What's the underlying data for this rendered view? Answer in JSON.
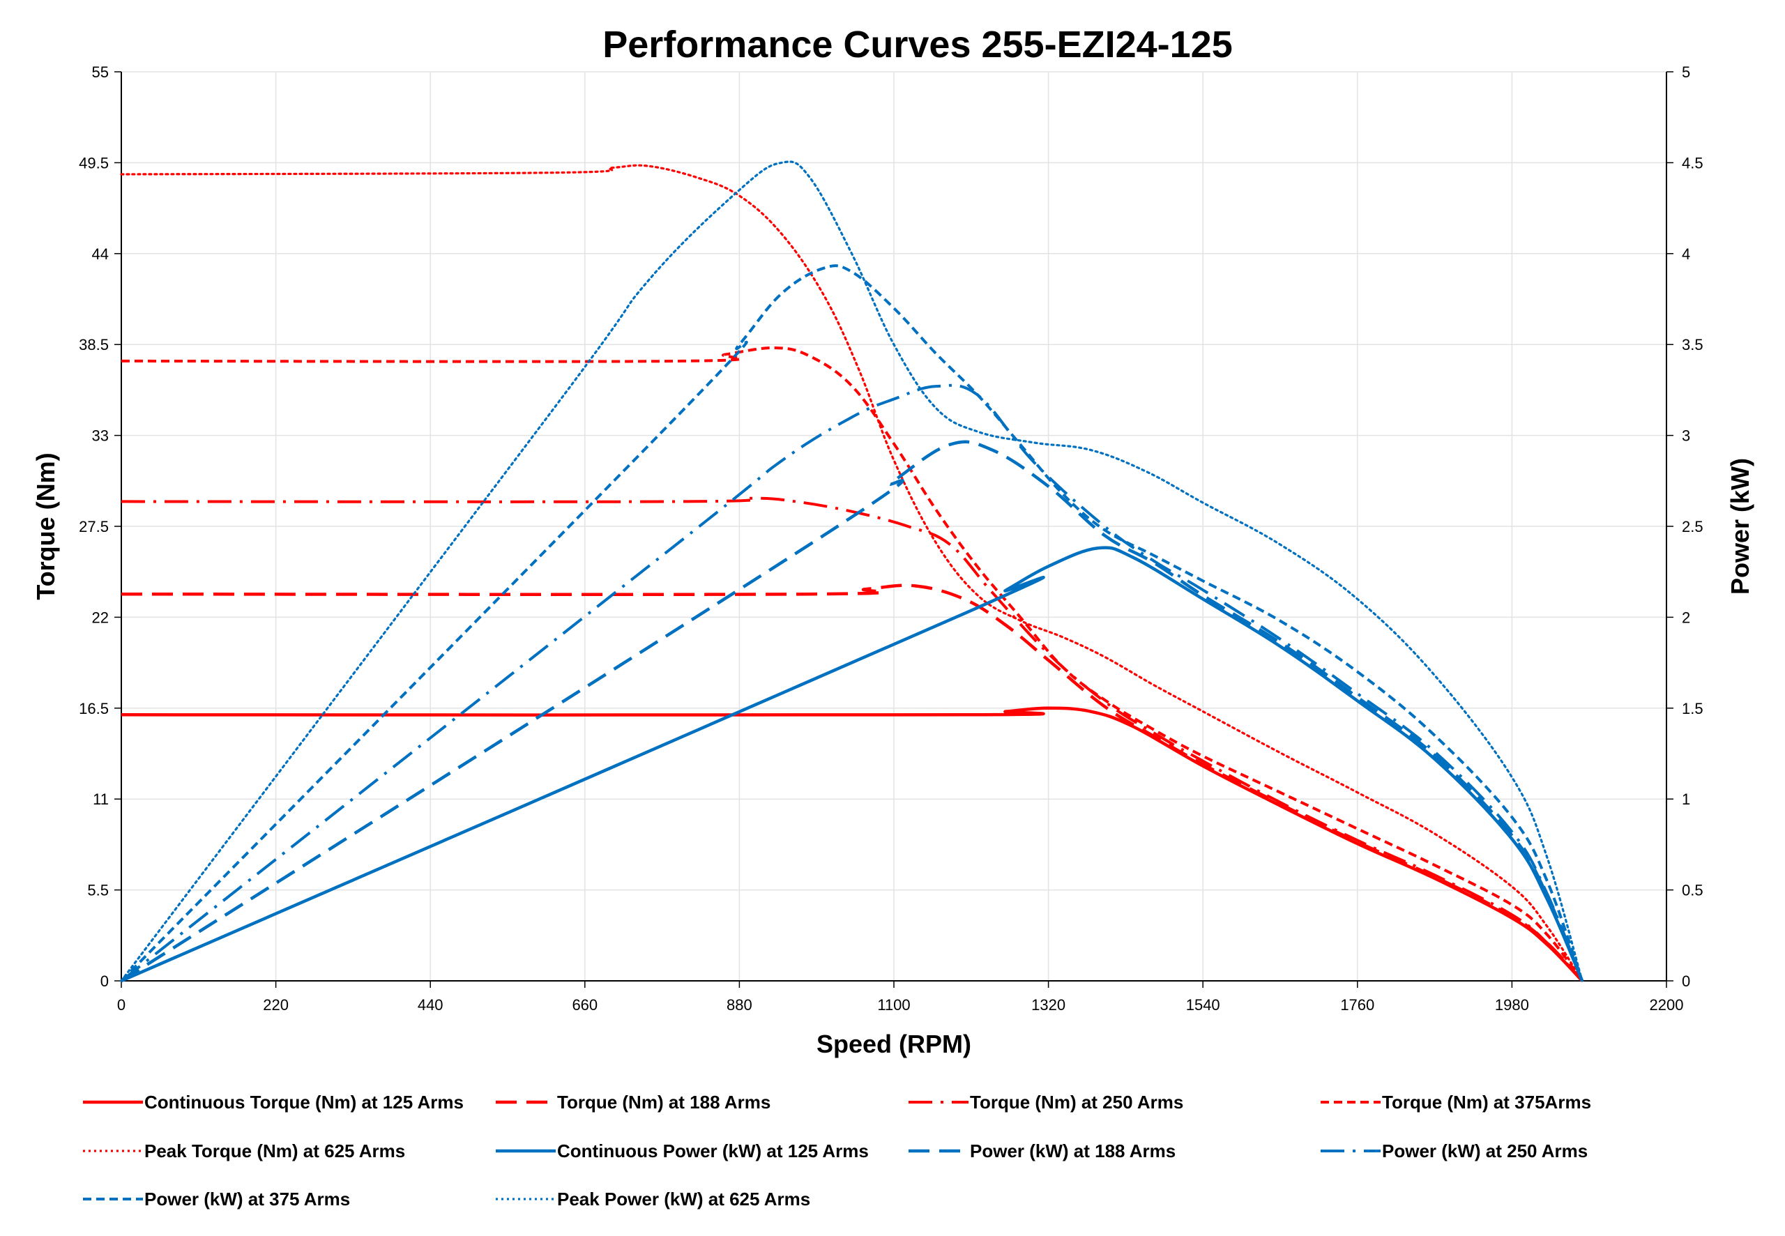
{
  "chart_data": {
    "type": "line",
    "title": "Performance Curves 255-EZI24-125",
    "xlabel": "Speed (RPM)",
    "ylabel": "Torque (Nm)",
    "y2label": "Power (kW)",
    "xlim": [
      0,
      2200
    ],
    "ylim": [
      0,
      55
    ],
    "y2lim": [
      0,
      5
    ],
    "xticks": [
      "0",
      "220",
      "440",
      "660",
      "880",
      "1100",
      "1320",
      "1540",
      "1760",
      "1980",
      "2200"
    ],
    "yticks": [
      "0",
      "5.5",
      "11",
      "16.5",
      "22",
      "27.5",
      "33",
      "38.5",
      "44",
      "49.5",
      "55"
    ],
    "y2ticks": [
      "0",
      "0.5",
      "1",
      "1.5",
      "2",
      "2.5",
      "3",
      "3.5",
      "4",
      "4.5",
      "5"
    ],
    "grid": true,
    "legend_position": "bottom",
    "colors": {
      "torque": "#ff0000",
      "power": "#0070c0"
    },
    "series": [
      {
        "name": "Continuous Torque (Nm) at 125 Arms",
        "axis": "left",
        "color": "#ff0000",
        "style": "solid",
        "points": [
          [
            0,
            16.1
          ],
          [
            1200,
            16.1
          ],
          [
            1260,
            16.3
          ],
          [
            1320,
            16.5
          ],
          [
            1380,
            16.3
          ],
          [
            1440,
            15.4
          ],
          [
            1540,
            13.0
          ],
          [
            1650,
            10.6
          ],
          [
            1760,
            8.3
          ],
          [
            1870,
            6.2
          ],
          [
            1980,
            3.8
          ],
          [
            2030,
            2.2
          ],
          [
            2080,
            0
          ]
        ]
      },
      {
        "name": "Torque (Nm) at 188 Arms",
        "axis": "left",
        "color": "#ff0000",
        "style": "long-dash",
        "points": [
          [
            0,
            23.4
          ],
          [
            980,
            23.4
          ],
          [
            1060,
            23.7
          ],
          [
            1130,
            23.9
          ],
          [
            1200,
            23.1
          ],
          [
            1260,
            21.5
          ],
          [
            1320,
            19.4
          ],
          [
            1400,
            16.6
          ],
          [
            1470,
            14.8
          ],
          [
            1540,
            13.1
          ],
          [
            1650,
            10.7
          ],
          [
            1760,
            8.4
          ],
          [
            1870,
            6.3
          ],
          [
            1980,
            3.9
          ],
          [
            2030,
            2.3
          ],
          [
            2080,
            0
          ]
        ]
      },
      {
        "name": "Torque (Nm) at 250 Arms",
        "axis": "left",
        "color": "#ff0000",
        "style": "dash-dot",
        "points": [
          [
            0,
            29.0
          ],
          [
            800,
            29.0
          ],
          [
            900,
            29.2
          ],
          [
            960,
            29.0
          ],
          [
            1040,
            28.4
          ],
          [
            1120,
            27.5
          ],
          [
            1180,
            26.4
          ],
          [
            1240,
            23.5
          ],
          [
            1320,
            19.8
          ],
          [
            1400,
            16.9
          ],
          [
            1470,
            15.0
          ],
          [
            1540,
            13.3
          ],
          [
            1650,
            10.8
          ],
          [
            1760,
            8.5
          ],
          [
            1870,
            6.4
          ],
          [
            1980,
            4.0
          ],
          [
            2030,
            2.3
          ],
          [
            2080,
            0
          ]
        ]
      },
      {
        "name": "Torque (Nm) at 375Arms",
        "axis": "left",
        "color": "#ff0000",
        "style": "short-dash",
        "points": [
          [
            0,
            37.5
          ],
          [
            800,
            37.5
          ],
          [
            860,
            37.9
          ],
          [
            930,
            38.3
          ],
          [
            980,
            37.8
          ],
          [
            1040,
            36.0
          ],
          [
            1100,
            32.5
          ],
          [
            1160,
            28.5
          ],
          [
            1220,
            25.0
          ],
          [
            1280,
            22.0
          ],
          [
            1340,
            19.0
          ],
          [
            1400,
            17.0
          ],
          [
            1470,
            15.2
          ],
          [
            1540,
            13.6
          ],
          [
            1650,
            11.4
          ],
          [
            1760,
            9.2
          ],
          [
            1870,
            7.0
          ],
          [
            1980,
            4.6
          ],
          [
            2030,
            2.8
          ],
          [
            2080,
            0
          ]
        ]
      },
      {
        "name": "Peak Torque (Nm) at 625  Arms",
        "axis": "left",
        "color": "#ff0000",
        "style": "dotted",
        "points": [
          [
            0,
            48.8
          ],
          [
            620,
            48.9
          ],
          [
            700,
            49.2
          ],
          [
            750,
            49.3
          ],
          [
            820,
            48.6
          ],
          [
            880,
            47.5
          ],
          [
            940,
            45.2
          ],
          [
            1000,
            41.5
          ],
          [
            1050,
            37.0
          ],
          [
            1100,
            31.5
          ],
          [
            1160,
            26.5
          ],
          [
            1220,
            23.3
          ],
          [
            1280,
            21.8
          ],
          [
            1340,
            20.8
          ],
          [
            1400,
            19.6
          ],
          [
            1470,
            17.9
          ],
          [
            1540,
            16.3
          ],
          [
            1650,
            13.8
          ],
          [
            1760,
            11.4
          ],
          [
            1870,
            8.9
          ],
          [
            1980,
            5.7
          ],
          [
            2030,
            3.3
          ],
          [
            2080,
            0
          ]
        ]
      },
      {
        "name": "Continuous Power (kW) at 125 Arms",
        "axis": "right",
        "color": "#0070c0",
        "style": "solid",
        "points": [
          [
            0,
            0
          ],
          [
            1200,
            2.02
          ],
          [
            1260,
            2.15
          ],
          [
            1320,
            2.28
          ],
          [
            1390,
            2.38
          ],
          [
            1440,
            2.33
          ],
          [
            1540,
            2.1
          ],
          [
            1650,
            1.84
          ],
          [
            1760,
            1.54
          ],
          [
            1870,
            1.22
          ],
          [
            1980,
            0.78
          ],
          [
            2030,
            0.45
          ],
          [
            2080,
            0
          ]
        ]
      },
      {
        "name": "Power (kW) at 188 Arms",
        "axis": "right",
        "color": "#0070c0",
        "style": "long-dash",
        "points": [
          [
            0,
            0
          ],
          [
            1000,
            2.45
          ],
          [
            1100,
            2.75
          ],
          [
            1180,
            2.95
          ],
          [
            1240,
            2.92
          ],
          [
            1320,
            2.72
          ],
          [
            1400,
            2.45
          ],
          [
            1470,
            2.3
          ],
          [
            1540,
            2.12
          ],
          [
            1650,
            1.86
          ],
          [
            1760,
            1.56
          ],
          [
            1870,
            1.24
          ],
          [
            1980,
            0.8
          ],
          [
            2030,
            0.47
          ],
          [
            2080,
            0
          ]
        ]
      },
      {
        "name": "Power (kW) at 250 Arms",
        "axis": "right",
        "color": "#0070c0",
        "style": "dash-dot",
        "points": [
          [
            0,
            0
          ],
          [
            800,
            2.43
          ],
          [
            940,
            2.86
          ],
          [
            1040,
            3.1
          ],
          [
            1100,
            3.2
          ],
          [
            1160,
            3.27
          ],
          [
            1220,
            3.22
          ],
          [
            1300,
            2.85
          ],
          [
            1400,
            2.5
          ],
          [
            1470,
            2.31
          ],
          [
            1540,
            2.15
          ],
          [
            1650,
            1.88
          ],
          [
            1760,
            1.58
          ],
          [
            1870,
            1.26
          ],
          [
            1980,
            0.82
          ],
          [
            2030,
            0.48
          ],
          [
            2080,
            0
          ]
        ]
      },
      {
        "name": "Power (kW) at 375 Arms",
        "axis": "right",
        "color": "#0070c0",
        "style": "short-dash",
        "points": [
          [
            0,
            0
          ],
          [
            800,
            3.14
          ],
          [
            880,
            3.5
          ],
          [
            940,
            3.78
          ],
          [
            1000,
            3.92
          ],
          [
            1040,
            3.9
          ],
          [
            1100,
            3.7
          ],
          [
            1160,
            3.45
          ],
          [
            1220,
            3.22
          ],
          [
            1280,
            2.95
          ],
          [
            1340,
            2.68
          ],
          [
            1400,
            2.48
          ],
          [
            1470,
            2.34
          ],
          [
            1540,
            2.2
          ],
          [
            1650,
            1.98
          ],
          [
            1760,
            1.7
          ],
          [
            1870,
            1.35
          ],
          [
            1980,
            0.9
          ],
          [
            2030,
            0.55
          ],
          [
            2080,
            0
          ]
        ]
      },
      {
        "name": "Peak Power (kW) at 625 Arms",
        "axis": "right",
        "color": "#0070c0",
        "style": "dotted",
        "points": [
          [
            0,
            0
          ],
          [
            620,
            3.17
          ],
          [
            750,
            3.85
          ],
          [
            880,
            4.35
          ],
          [
            940,
            4.5
          ],
          [
            980,
            4.42
          ],
          [
            1040,
            4.0
          ],
          [
            1100,
            3.5
          ],
          [
            1160,
            3.15
          ],
          [
            1220,
            3.02
          ],
          [
            1300,
            2.96
          ],
          [
            1380,
            2.92
          ],
          [
            1460,
            2.8
          ],
          [
            1540,
            2.63
          ],
          [
            1650,
            2.4
          ],
          [
            1760,
            2.1
          ],
          [
            1870,
            1.68
          ],
          [
            1980,
            1.12
          ],
          [
            2030,
            0.68
          ],
          [
            2080,
            0
          ]
        ]
      }
    ]
  }
}
